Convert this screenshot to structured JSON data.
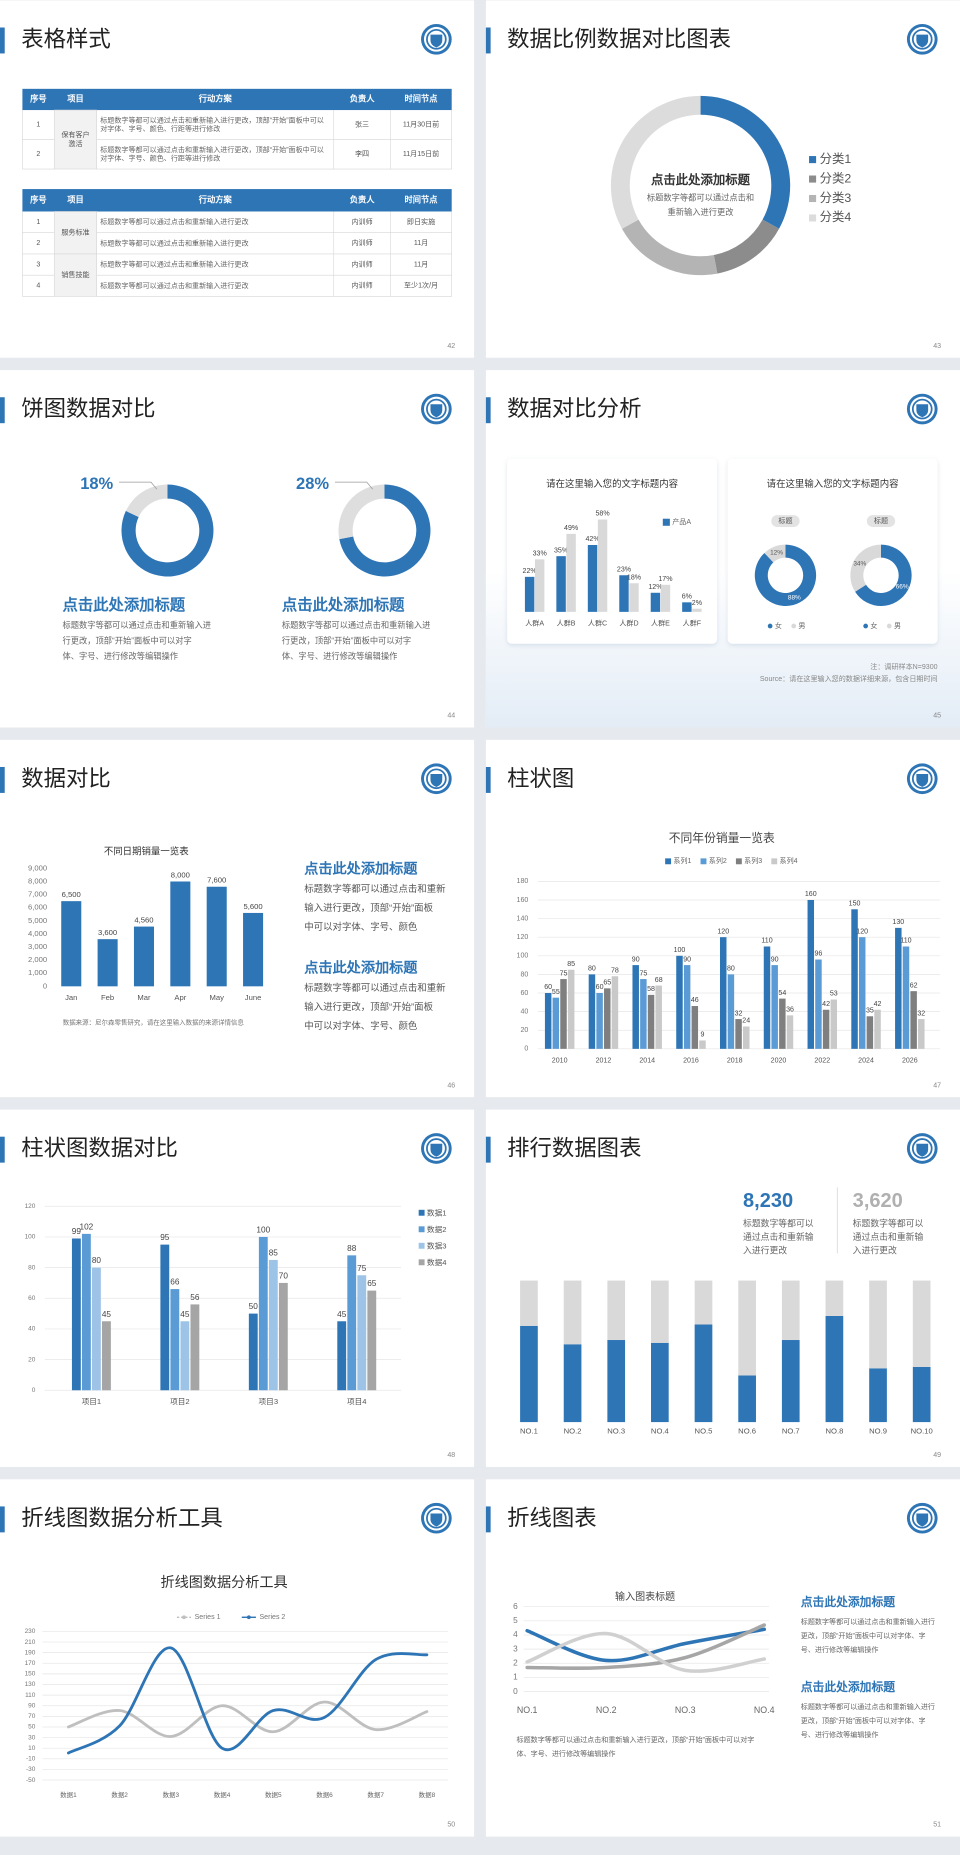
{
  "slides": [
    {
      "title": "表格样式",
      "page": 42,
      "tables": [
        {
          "header": [
            "序号",
            "项目",
            "行动方案",
            "负责人",
            "时间节点"
          ],
          "rows": [
            [
              "1",
              "保有客户激活",
              "标题数字等都可以通过点击和重新输入进行更改，顶部“开始”面板中可以对字体、字号、颜色、行距等进行修改",
              "张三",
              "11月30日前"
            ],
            [
              "2",
              null,
              "标题数字等都可以通过点击和重新输入进行更改，顶部“开始”面板中可以对字体、字号、颜色、行距等进行修改",
              "李四",
              "11月15日前"
            ]
          ]
        },
        {
          "header": [
            "序号",
            "项目",
            "行动方案",
            "负责人",
            "时间节点"
          ],
          "rows": [
            [
              "1",
              "服务标准",
              "标题数字等都可以通过点击和重新输入进行更改",
              "内训师",
              "即日实施"
            ],
            [
              "2",
              null,
              "标题数字等都可以通过点击和重新输入进行更改",
              "内训师",
              "11月"
            ],
            [
              "3",
              "销售技能",
              "标题数字等都可以通过点击和重新输入进行更改",
              "内训师",
              "11月"
            ],
            [
              "4",
              null,
              "标题数字等都可以通过点击和重新输入进行更改",
              "内训师",
              "至少1次/月"
            ]
          ]
        }
      ]
    },
    {
      "title": "数据比例数据对比图表",
      "page": 43,
      "center_title": "点击此处添加标题",
      "center_text": [
        "标题数字等都可以通过点击和",
        "重新输入进行更改"
      ]
    },
    {
      "title": "饼图数据对比",
      "page": 44,
      "blocks": [
        {
          "heading": "点击此处添加标题",
          "text": [
            "标题数字等都可以通过点击和重新输入进",
            "行更改，顶部“开始”面板中可以对字",
            "体、字号、进行修改等编辑操作"
          ]
        },
        {
          "heading": "点击此处添加标题",
          "text": [
            "标题数字等都可以通过点击和重新输入进",
            "行更改，顶部“开始”面板中可以对字",
            "体、字号、进行修改等编辑操作"
          ]
        }
      ]
    },
    {
      "title": "数据对比分析",
      "page": 45,
      "notes": [
        "注：调研样本N=9300",
        "Source：请在这里输入您的数据详细来源，包含日期时间"
      ]
    },
    {
      "title": "数据对比",
      "page": 46,
      "blocks": [
        {
          "heading": "点击此处添加标题",
          "text": [
            "标题数字等都可以通过点击和重新",
            "输入进行更改，顶部“开始”面板",
            "中可以对字体、字号、颜色"
          ]
        },
        {
          "heading": "点击此处添加标题",
          "text": [
            "标题数字等都可以通过点击和重新",
            "输入进行更改，顶部“开始”面板",
            "中可以对字体、字号、颜色"
          ]
        }
      ]
    },
    {
      "title": "柱状图",
      "page": 47
    },
    {
      "title": "柱状图数据对比",
      "page": 48
    },
    {
      "title": "排行数据图表",
      "page": 49,
      "stats": [
        {
          "value": "8,230",
          "text": [
            "标题数字等都可以",
            "通过点击和重新输",
            "入进行更改"
          ]
        },
        {
          "value": "3,620",
          "text": [
            "标题数字等都可以",
            "通过点击和重新输",
            "入进行更改"
          ]
        }
      ]
    },
    {
      "title": "折线图数据分析工具",
      "page": 50
    },
    {
      "title": "折线图表",
      "page": 51,
      "caption": [
        "标题数字等都可以通过点击和重新输入进行更改，顶部“开始”面板中可以对字",
        "体、字号、进行修改等编辑操作"
      ],
      "blocks": [
        {
          "heading": "点击此处添加标题",
          "text": [
            "标题数字等都可以通过点击和重新输入进行",
            "更改，顶部“开始”面板中可以对字体、字",
            "号、进行修改等编辑操作"
          ]
        },
        {
          "heading": "点击此处添加标题",
          "text": [
            "标题数字等都可以通过点击和重新输入进行",
            "更改，顶部“开始”面板中可以对字体、字",
            "号、进行修改等编辑操作"
          ]
        }
      ]
    }
  ],
  "chart_data": [
    {
      "type": "pie",
      "categories": [
        "分类1",
        "分类2",
        "分类3",
        "分类4"
      ],
      "values": [
        33,
        14,
        20,
        33
      ],
      "colors": [
        "#2e75b6",
        "#8c8c8c",
        "#b4b4b4",
        "#dcdcdc"
      ]
    },
    {
      "type": "pie",
      "values": [
        82,
        18
      ],
      "value_labels": [
        null,
        "18%"
      ],
      "colors": [
        "#2e75b6",
        "#dedede"
      ]
    },
    {
      "type": "pie",
      "values": [
        72,
        28
      ],
      "value_labels": [
        null,
        "28%"
      ],
      "colors": [
        "#2e75b6",
        "#dedede"
      ]
    },
    {
      "type": "bar",
      "title": "请在这里输入您的文字标题内容",
      "categories": [
        "人群A",
        "人群B",
        "人群C",
        "人群D",
        "人群E",
        "人群F"
      ],
      "series": [
        {
          "name": "产品A",
          "color": "#2e75b6",
          "values": [
            22,
            35,
            42,
            23,
            12,
            6
          ],
          "value_labels": [
            "22%",
            "35%",
            "42%",
            "23%",
            "12%",
            "6%"
          ]
        },
        {
          "color": "#d9d9d9",
          "values": [
            33,
            49,
            58,
            18,
            17,
            2
          ],
          "value_labels": [
            "33%",
            "49%",
            "58%",
            "18%",
            "17%",
            "2%"
          ]
        }
      ],
      "ylim": [
        0,
        60
      ]
    },
    {
      "type": "pies",
      "title": "请在这里输入您的文字标题内容",
      "categories": [
        "女",
        "男"
      ],
      "colors": [
        "#2e75b6",
        "#d9d9d9"
      ],
      "pies": [
        {
          "label": "标题",
          "values": [
            88,
            12
          ],
          "value_labels": [
            "88%",
            "12%"
          ]
        },
        {
          "label": "标题",
          "values": [
            66,
            34
          ],
          "value_labels": [
            "66%",
            "34%"
          ]
        }
      ]
    },
    {
      "type": "bar",
      "title": "不同日期销量一览表",
      "categories": [
        "Jan",
        "Feb",
        "Mar",
        "Apr",
        "May",
        "June"
      ],
      "values": [
        6500,
        3600,
        4560,
        8000,
        7600,
        5600
      ],
      "value_labels": [
        "6,500",
        "3,600",
        "4,560",
        "8,000",
        "7,600",
        "5,600"
      ],
      "color": "#2e75b6",
      "ylim": [
        0,
        9000
      ],
      "yticks": [
        0,
        {
          "value": 1000,
          "label": "1,000"
        },
        {
          "value": 2000,
          "label": "2,000"
        },
        {
          "value": 3000,
          "label": "3,000"
        },
        {
          "value": 4000,
          "label": "4,000"
        },
        {
          "value": 5000,
          "label": "5,000"
        },
        {
          "value": 6000,
          "label": "6,000"
        },
        {
          "value": 7000,
          "label": "7,000"
        },
        {
          "value": 8000,
          "label": "8,000"
        },
        {
          "value": 9000,
          "label": "9,000"
        }
      ],
      "note": "数据来源：尼尔森零售研究，请在这里输入数据的来源详情信息"
    },
    {
      "type": "bar",
      "title": "不同年份销量一览表",
      "categories": [
        "2010",
        "2012",
        "2014",
        "2016",
        "2018",
        "2020",
        "2022",
        "2024",
        "2026"
      ],
      "series": [
        {
          "name": "系列1",
          "color": "#2e75b6",
          "values": [
            60,
            80,
            90,
            100,
            120,
            110,
            160,
            150,
            130
          ]
        },
        {
          "name": "系列2",
          "color": "#5b9bd5",
          "values": [
            55,
            60,
            75,
            90,
            80,
            90,
            96,
            120,
            110
          ]
        },
        {
          "name": "系列3",
          "color": "#7f7f7f",
          "values": [
            75,
            65,
            58,
            46,
            32,
            54,
            42,
            35,
            62
          ]
        },
        {
          "name": "系列4",
          "color": "#c9c9c9",
          "values": [
            85,
            78,
            68,
            9,
            24,
            36,
            53,
            42,
            32
          ]
        }
      ],
      "ylim": [
        0,
        180
      ],
      "yticks": [
        0,
        20,
        40,
        60,
        80,
        100,
        120,
        140,
        160,
        180
      ],
      "grid": true,
      "data_labels": true
    },
    {
      "type": "bar",
      "categories": [
        "项目1",
        "项目2",
        "项目3",
        "项目4"
      ],
      "series": [
        {
          "name": "数据1",
          "color": "#2e75b6",
          "values": [
            99,
            95,
            50,
            45
          ]
        },
        {
          "name": "数据2",
          "color": "#5b9bd5",
          "values": [
            102,
            66,
            100,
            88
          ]
        },
        {
          "name": "数据3",
          "color": "#9dc3e6",
          "values": [
            80,
            45,
            85,
            75
          ]
        },
        {
          "name": "数据4",
          "color": "#a5a5a5",
          "values": [
            45,
            56,
            70,
            65
          ]
        }
      ],
      "ylim": [
        0,
        120
      ],
      "yticks": [
        0,
        20,
        40,
        60,
        80,
        100,
        120
      ],
      "grid": true,
      "data_labels": true
    },
    {
      "type": "bar",
      "stacked": true,
      "categories": [
        "NO.1",
        "NO.2",
        "NO.3",
        "NO.4",
        "NO.5",
        "NO.6",
        "NO.7",
        "NO.8",
        "NO.9",
        "NO.10"
      ],
      "series": [
        {
          "color": "#2e75b6",
          "values": [
            68,
            55,
            58,
            56,
            69,
            33,
            58,
            75,
            38,
            39
          ]
        },
        {
          "color": "#d9d9d9",
          "values": [
            32,
            45,
            42,
            44,
            31,
            67,
            42,
            25,
            62,
            61
          ]
        }
      ],
      "ylim": [
        0,
        100
      ]
    },
    {
      "type": "line",
      "title": "折线图数据分析工具",
      "categories": [
        "数据1",
        "数据2",
        "数据3",
        "数据4",
        "数据5",
        "数据6",
        "数据7",
        "数据8"
      ],
      "series": [
        {
          "name": "Series 1",
          "color": "#bfbfbf",
          "values": [
            50,
            81,
            32,
            90,
            41,
            97,
            45,
            79
          ]
        },
        {
          "name": "Series 2",
          "color": "#2e75b6",
          "values": [
            1,
            52,
            199,
            10,
            81,
            68,
            177,
            186
          ]
        }
      ],
      "ylim": [
        -50,
        230
      ],
      "yticks": [
        -50,
        -30,
        -10,
        10,
        30,
        50,
        70,
        90,
        110,
        130,
        150,
        170,
        190,
        210,
        230
      ],
      "grid": true,
      "smooth": true
    },
    {
      "type": "line",
      "title": "输入图表标题",
      "categories": [
        "NO.1",
        "NO.2",
        "NO.3",
        "NO.4"
      ],
      "series": [
        {
          "color": "#2e75b6",
          "values": [
            4.3,
            2.2,
            3.4,
            4.4
          ]
        },
        {
          "color": "#a6a6a6",
          "values": [
            1.7,
            1.7,
            2.4,
            4.7
          ]
        },
        {
          "color": "#d0d0d0",
          "values": [
            2.1,
            4.1,
            1.5,
            2.3
          ]
        }
      ],
      "ylim": [
        0,
        6
      ],
      "yticks": [
        0,
        1,
        2,
        3,
        4,
        5,
        6
      ],
      "grid": true,
      "smooth": true
    }
  ]
}
